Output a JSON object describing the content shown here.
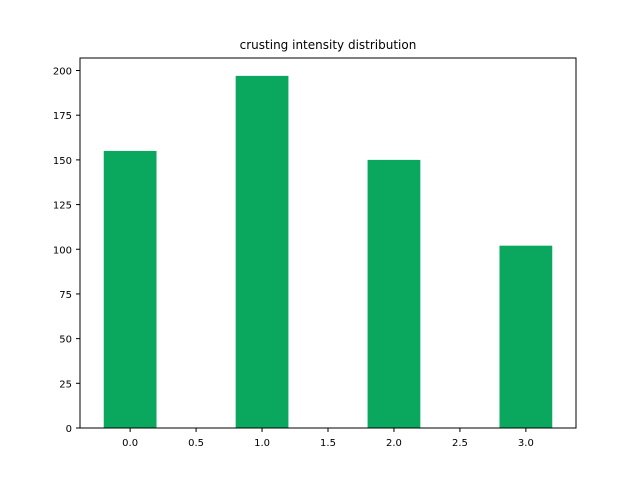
{
  "chart_data": {
    "type": "bar",
    "title": "crusting intensity distribution",
    "xlabel": "",
    "ylabel": "",
    "x": [
      0,
      1,
      2,
      3
    ],
    "values": [
      155,
      197,
      150,
      102
    ],
    "bar_width": 0.4,
    "xlim": [
      -0.38,
      3.38
    ],
    "ylim": [
      0,
      207
    ],
    "xticks": [
      0.0,
      0.5,
      1.0,
      1.5,
      2.0,
      2.5,
      3.0
    ],
    "xtick_labels": [
      "0.0",
      "0.5",
      "1.0",
      "1.5",
      "2.0",
      "2.5",
      "3.0"
    ],
    "yticks": [
      0,
      25,
      50,
      75,
      100,
      125,
      150,
      175,
      200
    ],
    "ytick_labels": [
      "0",
      "25",
      "50",
      "75",
      "100",
      "125",
      "150",
      "175",
      "200"
    ],
    "bar_color": "#0aa85f",
    "grid": false,
    "legend": "none"
  }
}
